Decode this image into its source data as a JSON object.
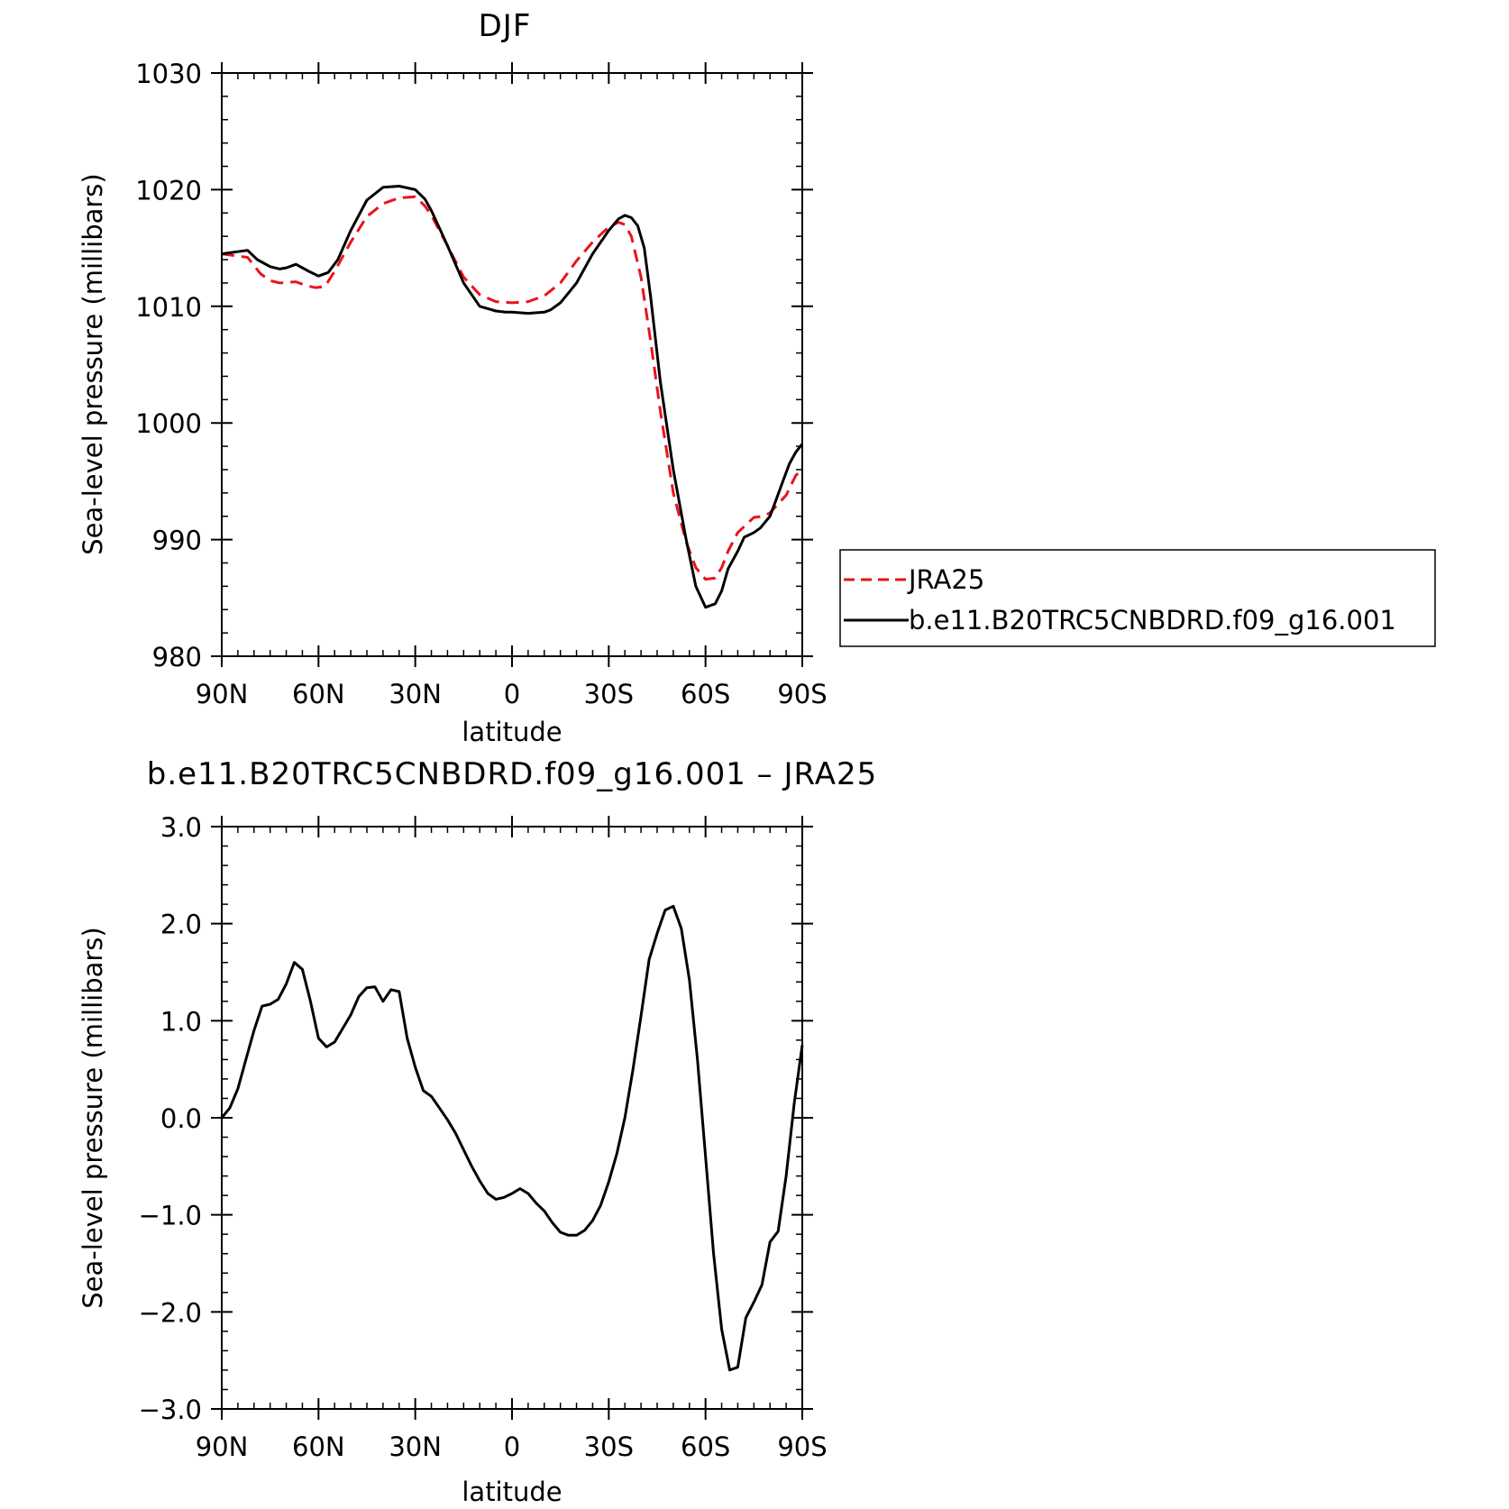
{
  "colors": {
    "jra25": "#e8141c",
    "model": "#000000",
    "frame": "#000000"
  },
  "legend": {
    "placement": "right of top panel",
    "entries": [
      {
        "label": "JRA25",
        "style": "dashed",
        "color": "#e8141c"
      },
      {
        "label": "b.e11.B20TRC5CNBDRD.f09_g16.001",
        "style": "solid",
        "color": "#000000"
      }
    ]
  },
  "chart_data": [
    {
      "type": "line",
      "title": "DJF",
      "xlabel": "latitude",
      "ylabel": "Sea-level pressure (millibars)",
      "xlim": [
        90,
        -90
      ],
      "ylim": [
        980,
        1030
      ],
      "xticks": [
        {
          "v": 90,
          "label": "90N"
        },
        {
          "v": 60,
          "label": "60N"
        },
        {
          "v": 30,
          "label": "30N"
        },
        {
          "v": 0,
          "label": "0"
        },
        {
          "v": -30,
          "label": "30S"
        },
        {
          "v": -60,
          "label": "60S"
        },
        {
          "v": -90,
          "label": "90S"
        }
      ],
      "yticks": [
        {
          "v": 980,
          "label": "980"
        },
        {
          "v": 990,
          "label": "990"
        },
        {
          "v": 1000,
          "label": "1000"
        },
        {
          "v": 1010,
          "label": "1010"
        },
        {
          "v": 1020,
          "label": "1020"
        },
        {
          "v": 1030,
          "label": "1030"
        }
      ],
      "grid": false,
      "series": [
        {
          "name": "JRA25",
          "style": "dashed",
          "x": [
            90,
            82,
            78,
            75,
            72,
            67,
            64,
            61,
            58,
            55,
            50,
            45,
            40,
            35,
            30,
            27,
            25,
            20,
            15,
            10,
            5,
            0,
            -5,
            -10,
            -15,
            -20,
            -25,
            -30,
            -33,
            -35,
            -37,
            -40,
            -43,
            -46,
            -50,
            -54,
            -57,
            -60,
            -63,
            -65,
            -67,
            -70,
            -75,
            -78,
            -80,
            -85,
            -88,
            -90
          ],
          "values": [
            1014.5,
            1014.2,
            1012.8,
            1012.2,
            1012.0,
            1012.1,
            1011.8,
            1011.6,
            1011.7,
            1013.0,
            1015.5,
            1017.7,
            1018.8,
            1019.3,
            1019.4,
            1018.6,
            1017.8,
            1015.2,
            1012.5,
            1011.0,
            1010.4,
            1010.3,
            1010.4,
            1010.9,
            1012.0,
            1013.9,
            1015.5,
            1016.8,
            1017.2,
            1017.0,
            1016.0,
            1012.5,
            1007.0,
            1001.0,
            994.0,
            989.8,
            987.6,
            986.6,
            986.7,
            987.6,
            989.0,
            990.6,
            991.9,
            992.0,
            992.3,
            993.8,
            995.5,
            996.0
          ]
        },
        {
          "name": "b.e11.B20TRC5CNBDRD.f09_g16.001",
          "style": "solid",
          "x": [
            90,
            82,
            79,
            75,
            72,
            70,
            67,
            63,
            60,
            57,
            54,
            50,
            45,
            40,
            35,
            30,
            27,
            25,
            20,
            15,
            10,
            5,
            2,
            0,
            -5,
            -10,
            -12,
            -15,
            -20,
            -25,
            -30,
            -33,
            -35,
            -37,
            -39,
            -41,
            -43,
            -46,
            -50,
            -54,
            -57,
            -60,
            -63,
            -65,
            -67,
            -70,
            -72,
            -75,
            -77,
            -80,
            -82,
            -84,
            -86,
            -88,
            -90
          ],
          "values": [
            1014.5,
            1014.8,
            1014.0,
            1013.4,
            1013.2,
            1013.3,
            1013.6,
            1013.0,
            1012.6,
            1012.9,
            1014.0,
            1016.5,
            1019.1,
            1020.2,
            1020.3,
            1020.0,
            1019.2,
            1018.2,
            1015.2,
            1012.0,
            1010.0,
            1009.6,
            1009.5,
            1009.5,
            1009.4,
            1009.5,
            1009.7,
            1010.3,
            1012.0,
            1014.5,
            1016.5,
            1017.5,
            1017.8,
            1017.6,
            1016.9,
            1015.0,
            1010.8,
            1003.5,
            996.0,
            990.0,
            986.0,
            984.2,
            984.5,
            985.6,
            987.5,
            989.0,
            990.2,
            990.6,
            991.0,
            992.0,
            993.5,
            995.0,
            996.5,
            997.5,
            998.2
          ]
        }
      ]
    },
    {
      "type": "line",
      "title": "b.e11.B20TRC5CNBDRD.f09_g16.001 – JRA25",
      "xlabel": "latitude",
      "ylabel": "Sea-level pressure (millibars)",
      "xlim": [
        90,
        -90
      ],
      "ylim": [
        -3.0,
        3.0
      ],
      "xticks": [
        {
          "v": 90,
          "label": "90N"
        },
        {
          "v": 60,
          "label": "60N"
        },
        {
          "v": 30,
          "label": "30N"
        },
        {
          "v": 0,
          "label": "0"
        },
        {
          "v": -30,
          "label": "30S"
        },
        {
          "v": -60,
          "label": "60S"
        },
        {
          "v": -90,
          "label": "90S"
        }
      ],
      "yticks": [
        {
          "v": -3,
          "label": "−3.0"
        },
        {
          "v": -2,
          "label": "−2.0"
        },
        {
          "v": -1,
          "label": "−1.0"
        },
        {
          "v": 0,
          "label": "0.0"
        },
        {
          "v": 1,
          "label": "1.0"
        },
        {
          "v": 2,
          "label": "2.0"
        },
        {
          "v": 3,
          "label": "3.0"
        }
      ],
      "grid": false,
      "series": [
        {
          "name": "",
          "style": "solid",
          "x": [
            90,
            87.5,
            85,
            82.5,
            80,
            77.5,
            75,
            72.5,
            70,
            67.5,
            65,
            62.5,
            60,
            57.5,
            55,
            52.5,
            50,
            47.5,
            45,
            42.5,
            40,
            37.5,
            35,
            32.5,
            30,
            27.5,
            25,
            22.5,
            20,
            17.5,
            15,
            12.5,
            10,
            7.5,
            5,
            2.5,
            0,
            -2.5,
            -5,
            -7.5,
            -10,
            -12.5,
            -15,
            -17.5,
            -20,
            -22.5,
            -25,
            -27.5,
            -30,
            -32.5,
            -35,
            -37.5,
            -40,
            -42.5,
            -45,
            -47.5,
            -50,
            -52.5,
            -55,
            -57.5,
            -60,
            -62.5,
            -65,
            -67.5,
            -70,
            -72.5,
            -75,
            -77.5,
            -80,
            -82.5,
            -85,
            -87.5,
            -90
          ],
          "values": [
            0.0,
            0.1,
            0.3,
            0.6,
            0.9,
            1.15,
            1.17,
            1.22,
            1.38,
            1.6,
            1.53,
            1.2,
            0.82,
            0.73,
            0.78,
            0.92,
            1.06,
            1.25,
            1.34,
            1.35,
            1.2,
            1.32,
            1.3,
            0.82,
            0.52,
            0.28,
            0.22,
            0.1,
            -0.02,
            -0.16,
            -0.33,
            -0.5,
            -0.65,
            -0.78,
            -0.84,
            -0.82,
            -0.78,
            -0.73,
            -0.78,
            -0.88,
            -0.96,
            -1.08,
            -1.18,
            -1.21,
            -1.21,
            -1.16,
            -1.06,
            -0.9,
            -0.66,
            -0.37,
            -0.0,
            0.5,
            1.05,
            1.63,
            1.9,
            2.14,
            2.18,
            1.95,
            1.42,
            0.6,
            -0.4,
            -1.4,
            -2.18,
            -2.6,
            -2.57,
            -2.06,
            -1.9,
            -1.72,
            -1.28,
            -1.17,
            -0.6,
            0.15,
            0.75
          ]
        }
      ]
    }
  ]
}
